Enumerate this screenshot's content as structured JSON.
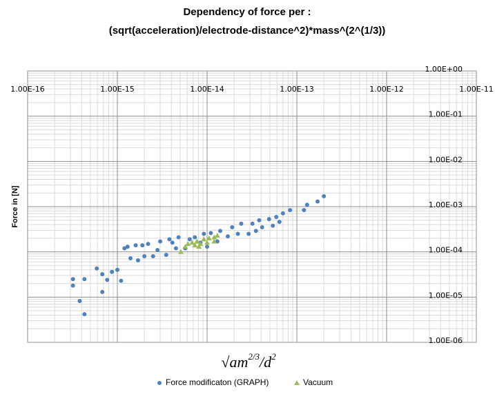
{
  "chart_data": {
    "type": "scatter",
    "title": [
      "Dependency of force per :",
      "(sqrt(acceleration)/electrode-distance^2)*mass^(2^(1/3))"
    ],
    "y_label": "Force in [N]",
    "x_label": {
      "base": "√am",
      "exp": "2/3",
      "div": "/d",
      "exp2": "2"
    },
    "xscale": "log",
    "yscale": "log",
    "xlim": [
      1e-16,
      1e-11
    ],
    "ylim": [
      1e-06,
      1
    ],
    "xticks": [
      {
        "value": 1e-16,
        "label": "1.00E-16"
      },
      {
        "value": 1e-15,
        "label": "1.00E-15"
      },
      {
        "value": 1e-14,
        "label": "1.00E-14"
      },
      {
        "value": 1e-13,
        "label": "1.00E-13"
      },
      {
        "value": 1e-12,
        "label": "1.00E-12"
      },
      {
        "value": 1e-11,
        "label": "1.00E-11"
      }
    ],
    "yticks": [
      {
        "value": 1e-06,
        "label": "1.00E-06"
      },
      {
        "value": 1e-05,
        "label": "1.00E-05"
      },
      {
        "value": 0.0001,
        "label": "1.00E-04"
      },
      {
        "value": 0.001,
        "label": "1.00E-03"
      },
      {
        "value": 0.01,
        "label": "1.00E-02"
      },
      {
        "value": 0.1,
        "label": "1.00E-01"
      },
      {
        "value": 1,
        "label": "1.00E+00"
      }
    ],
    "grid": true,
    "minor_grid": true,
    "legend": "bottom",
    "series": [
      {
        "name": "Force modificaton (GRAPH)",
        "color": "#4f81bd",
        "marker": "circle",
        "x": [
          3.2e-16,
          3.2e-16,
          3.8e-16,
          4.3e-16,
          4.3e-16,
          6.8e-16,
          6.8e-16,
          7.7e-16,
          8.7e-16,
          1e-15,
          1.1e-15,
          1.2e-15,
          1.3e-15,
          1.4e-15,
          1.6e-15,
          1.7e-15,
          1.9e-15,
          2e-15,
          2.2e-15,
          2.5e-15,
          2.8e-15,
          3e-15,
          3.5e-15,
          3.8e-15,
          4.1e-15,
          4.8e-15,
          5.7e-15,
          6.4e-15,
          7.3e-15,
          8.4e-15,
          9.2e-15,
          1.1e-14,
          1.3e-14,
          1.4e-14,
          1.7e-14,
          1.9e-14,
          2.2e-14,
          2.4e-14,
          2.9e-14,
          3.2e-14,
          3.8e-14,
          4.1e-14,
          4.9e-14,
          5.9e-14,
          6.4e-14,
          7e-14,
          8.4e-14,
          1.2e-13,
          1.3e-13,
          1.7e-13,
          2e-13,
          5.9e-16,
          4.5e-15,
          1e-14,
          3.5e-14,
          5.4e-14
        ],
        "values": [
          2.5e-05,
          1.8e-05,
          8.2e-06,
          2.5e-05,
          4.2e-06,
          3.2e-05,
          1.3e-05,
          2.4e-05,
          3.6e-05,
          4e-05,
          2.3e-05,
          0.00012,
          0.00013,
          7.2e-05,
          0.00014,
          6.5e-05,
          0.00014,
          8e-05,
          0.00015,
          8e-05,
          0.00011,
          0.00017,
          8.6e-05,
          0.00019,
          0.00016,
          0.00021,
          0.00012,
          0.00019,
          0.00021,
          0.00016,
          0.00025,
          0.00026,
          0.00017,
          0.00029,
          0.00022,
          0.00035,
          0.00025,
          0.00042,
          0.00025,
          0.00042,
          0.0005,
          0.00035,
          0.00053,
          0.00059,
          0.00046,
          0.00071,
          0.00084,
          0.00084,
          0.0011,
          0.0013,
          0.0017,
          4.3e-05,
          0.00012,
          0.00013,
          0.00029,
          0.00038
        ]
      },
      {
        "name": "Vacuum",
        "color": "#9bbb59",
        "marker": "triangle",
        "x": [
          5.1e-15,
          5.7e-15,
          6.1e-15,
          6.8e-15,
          7.3e-15,
          7.7e-15,
          8.4e-15,
          9.2e-15,
          1e-14,
          1.05e-14,
          1.2e-14,
          1.2e-14,
          1.3e-14,
          8.1e-15
        ],
        "values": [
          0.0001,
          0.00013,
          0.00015,
          0.00016,
          0.00014,
          0.00017,
          0.00015,
          0.00019,
          0.00016,
          0.0002,
          0.00017,
          0.00021,
          0.00023,
          0.00013
        ]
      }
    ]
  }
}
